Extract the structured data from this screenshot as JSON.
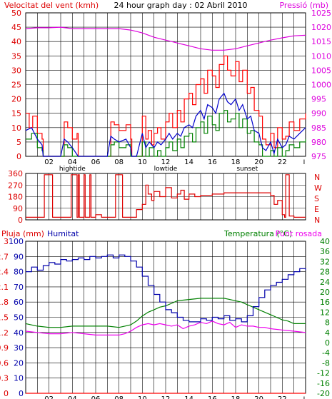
{
  "colors": {
    "background": "#ffffff",
    "grid": "#000000",
    "gust": "#ff0000",
    "wind_avg": "#0000cc",
    "wind_min": "#008000",
    "pressure": "#dd00dd",
    "direction": "#dd0000",
    "humidity": "#0000aa",
    "temperature": "#008000",
    "dewpoint": "#ee00ee",
    "rain": "#ff0000",
    "label_blue": "#0000aa",
    "label_green": "#008000",
    "label_red": "#dd0000",
    "label_magenta": "#dd00dd"
  },
  "chart_data": [
    {
      "type": "line",
      "title": "24 hour graph day : 02 Abril 2010",
      "ylabel_left": "Velocitat del vent (kmh)",
      "ylabel_right": "Pressió (mb)",
      "xlim": [
        0,
        24
      ],
      "ylim_left": [
        0,
        50
      ],
      "ylim_right": [
        975,
        1025
      ],
      "yticks_left": [
        "0",
        "5",
        "10",
        "15",
        "20",
        "25",
        "30",
        "35",
        "40",
        "45",
        "50"
      ],
      "yticks_right": [
        "975",
        "980",
        "985",
        "990",
        "995",
        "1000",
        "1005",
        "1010",
        "1015",
        "1020",
        "1025"
      ],
      "xticks": [
        "02",
        "04",
        "06",
        "08",
        "10",
        "12",
        "14",
        "16",
        "18",
        "20",
        "22"
      ],
      "xmarkers": [
        "hightide",
        "lowtide",
        "sunset"
      ],
      "xmarker_hours": [
        4,
        12,
        19
      ],
      "series": [
        {
          "axis": "right",
          "x": [
            0,
            1,
            2,
            3,
            4,
            5,
            6,
            7,
            8,
            9,
            10,
            11,
            12,
            13,
            14,
            15,
            16,
            17,
            18,
            19,
            20,
            21,
            22,
            23,
            24
          ],
          "values": [
            1019.5,
            1019.8,
            1019.8,
            1020.0,
            1019.5,
            1019.5,
            1019.5,
            1019.5,
            1019.5,
            1019.0,
            1018.0,
            1016.5,
            1015.5,
            1014.5,
            1013.5,
            1012.5,
            1012.0,
            1012.0,
            1012.5,
            1013.5,
            1014.5,
            1015.5,
            1016.3,
            1017.0,
            1017.2
          ]
        },
        {
          "axis": "left",
          "x": [
            0,
            0.3,
            0.6,
            1,
            1.4,
            1.5,
            2,
            2.5,
            3,
            3.3,
            3.6,
            4,
            4.4,
            4.5,
            5,
            6,
            7,
            7.3,
            7.6,
            8,
            8.6,
            9,
            9.1,
            9.5,
            10,
            10.3,
            10.5,
            10.8,
            11,
            11.3,
            11.6,
            12,
            12.3,
            12.6,
            13,
            13.3,
            13.6,
            14,
            14.3,
            14.6,
            15,
            15.3,
            15.6,
            16,
            16.3,
            16.6,
            17,
            17.3,
            17.6,
            18,
            18.3,
            18.6,
            19,
            19.3,
            19.6,
            20,
            20.3,
            20.6,
            21,
            21.3,
            21.6,
            22,
            22.3,
            22.6,
            23,
            23.5,
            24
          ],
          "values": [
            15,
            10,
            14,
            8,
            6,
            0,
            0,
            0,
            0,
            12,
            10,
            6,
            8,
            0,
            0,
            0,
            0,
            12,
            11,
            9,
            11,
            6,
            0,
            0,
            14,
            6,
            9,
            4,
            8,
            10,
            6,
            12,
            15,
            10,
            16,
            12,
            20,
            22,
            18,
            25,
            27,
            22,
            30,
            28,
            24,
            32,
            35,
            30,
            28,
            33,
            26,
            30,
            22,
            24,
            16,
            14,
            6,
            4,
            8,
            3,
            10,
            6,
            7,
            12,
            9,
            13,
            15
          ]
        },
        {
          "axis": "left",
          "x": [
            0,
            0.5,
            1,
            1.4,
            1.5,
            2,
            3,
            3.3,
            3.6,
            4,
            4.5,
            5,
            6,
            7,
            7.3,
            7.6,
            8,
            8.6,
            9,
            9.1,
            9.5,
            10,
            10.3,
            10.6,
            11,
            11.3,
            11.6,
            12,
            12.3,
            12.6,
            13,
            13.3,
            13.6,
            14,
            14.3,
            14.6,
            15,
            15.3,
            15.6,
            16,
            16.3,
            16.6,
            17,
            17.3,
            17.6,
            18,
            18.3,
            18.6,
            19,
            19.3,
            19.6,
            20,
            20.3,
            20.6,
            21,
            21.3,
            21.6,
            22,
            22.3,
            22.6,
            23,
            23.5,
            24
          ],
          "values": [
            9,
            10,
            6,
            4,
            0,
            0,
            0,
            6,
            5,
            3,
            0,
            0,
            0,
            0,
            7,
            6,
            5,
            6,
            3,
            0,
            0,
            8,
            3,
            5,
            3,
            5,
            4,
            6,
            8,
            6,
            8,
            7,
            10,
            11,
            10,
            14,
            16,
            13,
            18,
            17,
            15,
            20,
            22,
            19,
            18,
            20,
            16,
            18,
            13,
            14,
            9,
            8,
            3,
            2,
            5,
            1,
            6,
            3,
            4,
            7,
            6,
            8,
            10
          ]
        },
        {
          "axis": "left",
          "x": [
            0,
            0.5,
            1,
            1.4,
            1.5,
            2,
            3,
            3.3,
            3.6,
            4,
            4.5,
            5,
            6,
            7,
            7.3,
            7.6,
            8,
            8.6,
            9,
            9.1,
            9.5,
            10,
            10.3,
            10.6,
            11,
            11.3,
            11.6,
            12,
            12.3,
            12.6,
            13,
            13.3,
            13.6,
            14,
            14.3,
            14.6,
            15,
            15.3,
            15.6,
            16,
            16.3,
            16.6,
            17,
            17.3,
            17.6,
            18,
            18.3,
            18.6,
            19,
            19.3,
            19.6,
            20,
            20.3,
            20.6,
            21,
            21.3,
            21.6,
            22,
            22.3,
            22.6,
            23,
            23.5,
            24
          ],
          "values": [
            6,
            8,
            3,
            2,
            0,
            0,
            0,
            4,
            3,
            0,
            0,
            0,
            0,
            0,
            4,
            5,
            3,
            4,
            0,
            0,
            0,
            5,
            0,
            3,
            0,
            2,
            0,
            3,
            5,
            2,
            6,
            3,
            7,
            8,
            5,
            10,
            12,
            8,
            14,
            11,
            9,
            15,
            16,
            12,
            13,
            15,
            10,
            13,
            8,
            9,
            5,
            4,
            0,
            0,
            2,
            0,
            3,
            0,
            2,
            4,
            3,
            5,
            6
          ]
        }
      ]
    },
    {
      "type": "line",
      "ylabel_right": "N W S E N",
      "xlim": [
        0,
        24
      ],
      "ylim": [
        0,
        360
      ],
      "yticks": [
        "0",
        "90",
        "180",
        "270",
        "360"
      ],
      "compass": [
        "N",
        "W",
        "S",
        "E",
        "N"
      ],
      "series": [
        {
          "x": [
            0,
            1.5,
            1.6,
            2.2,
            2.3,
            3.8,
            3.9,
            4.3,
            4.4,
            4.5,
            4.6,
            5,
            5.1,
            5.5,
            5.6,
            6,
            6.5,
            7,
            7.3,
            7.6,
            7.7,
            8.3,
            8.4,
            9,
            9.5,
            10,
            10.3,
            10.5,
            10.8,
            11,
            11.5,
            12,
            12.5,
            13,
            13.3,
            13.6,
            14,
            14.5,
            15,
            16,
            17,
            18,
            19,
            20,
            21,
            21.3,
            21.6,
            22,
            22.2,
            22.3,
            22.6,
            23,
            24
          ],
          "values": [
            20,
            20,
            350,
            350,
            20,
            20,
            350,
            350,
            20,
            350,
            20,
            350,
            20,
            350,
            20,
            40,
            20,
            20,
            20,
            20,
            350,
            20,
            20,
            20,
            80,
            120,
            270,
            200,
            150,
            220,
            180,
            250,
            170,
            200,
            230,
            160,
            200,
            180,
            190,
            200,
            210,
            210,
            210,
            210,
            190,
            120,
            150,
            40,
            20,
            350,
            30,
            20,
            20
          ]
        }
      ]
    },
    {
      "type": "line",
      "ylabel_left": "Pluja (mm)",
      "ylabel_left2": "Humitat",
      "ylabel_right": "Temperatura (°C)",
      "ylabel_right2": "Punt rosada",
      "xlim": [
        0,
        24
      ],
      "ylim_rain": [
        0,
        3
      ],
      "ylim_humidity": [
        0,
        100
      ],
      "ylim_temp": [
        -20,
        40
      ],
      "yticks_rain": [
        "0",
        "0.3",
        "0.6",
        "0.9",
        "1.2",
        "1.5",
        "1.8",
        "2.1",
        "2.4",
        "2.7",
        "3"
      ],
      "yticks_humidity": [
        "0",
        "10",
        "20",
        "30",
        "40",
        "50",
        "60",
        "70",
        "80",
        "90",
        "100"
      ],
      "yticks_temp": [
        "-20",
        "-16",
        "-12",
        "-8",
        "-4",
        "0",
        "4",
        "8",
        "12",
        "16",
        "20",
        "24",
        "28",
        "32",
        "36",
        "40"
      ],
      "xticks": [
        "02",
        "04",
        "06",
        "08",
        "10",
        "12",
        "14",
        "16",
        "18",
        "20",
        "22"
      ],
      "xmarkers": [
        "hightide",
        "lowtide",
        "sunset"
      ],
      "xmarker_hours": [
        4,
        12,
        19
      ],
      "series": [
        {
          "axis": "humidity",
          "x": [
            0,
            0.5,
            1,
            1.5,
            2,
            2.5,
            3,
            3.5,
            4,
            4.5,
            5,
            5.5,
            6,
            6.5,
            7,
            7.5,
            8,
            8.5,
            9,
            9.5,
            10,
            10.5,
            11,
            11.5,
            12,
            12.5,
            13,
            13.5,
            14,
            14.5,
            15,
            15.5,
            16,
            16.5,
            17,
            17.5,
            18,
            18.5,
            19,
            19.5,
            20,
            20.5,
            21,
            21.5,
            22,
            22.5,
            23,
            23.5,
            24
          ],
          "values": [
            80,
            83,
            81,
            84,
            86,
            85,
            88,
            87,
            88,
            89,
            88,
            90,
            89,
            90,
            91,
            89,
            91,
            90,
            87,
            83,
            77,
            71,
            65,
            60,
            55,
            53,
            50,
            48,
            47,
            47,
            49,
            48,
            50,
            49,
            51,
            48,
            49,
            47,
            51,
            57,
            63,
            68,
            71,
            73,
            75,
            78,
            80,
            82,
            81
          ]
        },
        {
          "axis": "temp",
          "x": [
            0,
            1,
            2,
            3,
            4,
            5,
            6,
            7,
            8,
            8.5,
            9,
            9.5,
            10,
            10.5,
            11,
            11.5,
            12,
            12.5,
            13,
            14,
            15,
            16,
            16.5,
            17,
            17.5,
            18,
            18.5,
            19,
            19.5,
            20,
            20.5,
            21,
            21.5,
            22,
            22.5,
            23,
            24
          ],
          "values": [
            7.5,
            6.5,
            6,
            6,
            6.5,
            6.5,
            6.5,
            6.5,
            6,
            6.5,
            7,
            8.5,
            10.5,
            12,
            13,
            14,
            14.5,
            15.5,
            16.5,
            17,
            17.5,
            17.5,
            17.5,
            17.5,
            17,
            16.5,
            16,
            15,
            14,
            13,
            12,
            11,
            10,
            9,
            8.5,
            7.5,
            7.5
          ]
        },
        {
          "axis": "temp",
          "x": [
            0,
            1,
            2,
            3,
            4,
            5,
            6,
            7,
            8,
            8.5,
            9,
            9.5,
            10,
            10.5,
            11,
            11.5,
            12,
            12.5,
            13,
            13.5,
            14,
            14.5,
            15,
            15.5,
            16,
            16.5,
            17,
            17.5,
            18,
            18.5,
            19,
            19.5,
            20,
            20.5,
            21,
            22,
            23,
            24
          ],
          "values": [
            4.5,
            4,
            3.5,
            3.5,
            4,
            3.5,
            3,
            3,
            3,
            3.5,
            4.5,
            6,
            7,
            7.5,
            7,
            7.5,
            7,
            6.5,
            7,
            5.5,
            6.5,
            7,
            8,
            7.5,
            8.5,
            7.5,
            7,
            8,
            6,
            7,
            6.5,
            6.5,
            6,
            6,
            5.5,
            5,
            4.5,
            4
          ]
        },
        {
          "axis": "rain",
          "x": [
            0,
            24
          ],
          "values": [
            0,
            0
          ]
        }
      ]
    }
  ]
}
